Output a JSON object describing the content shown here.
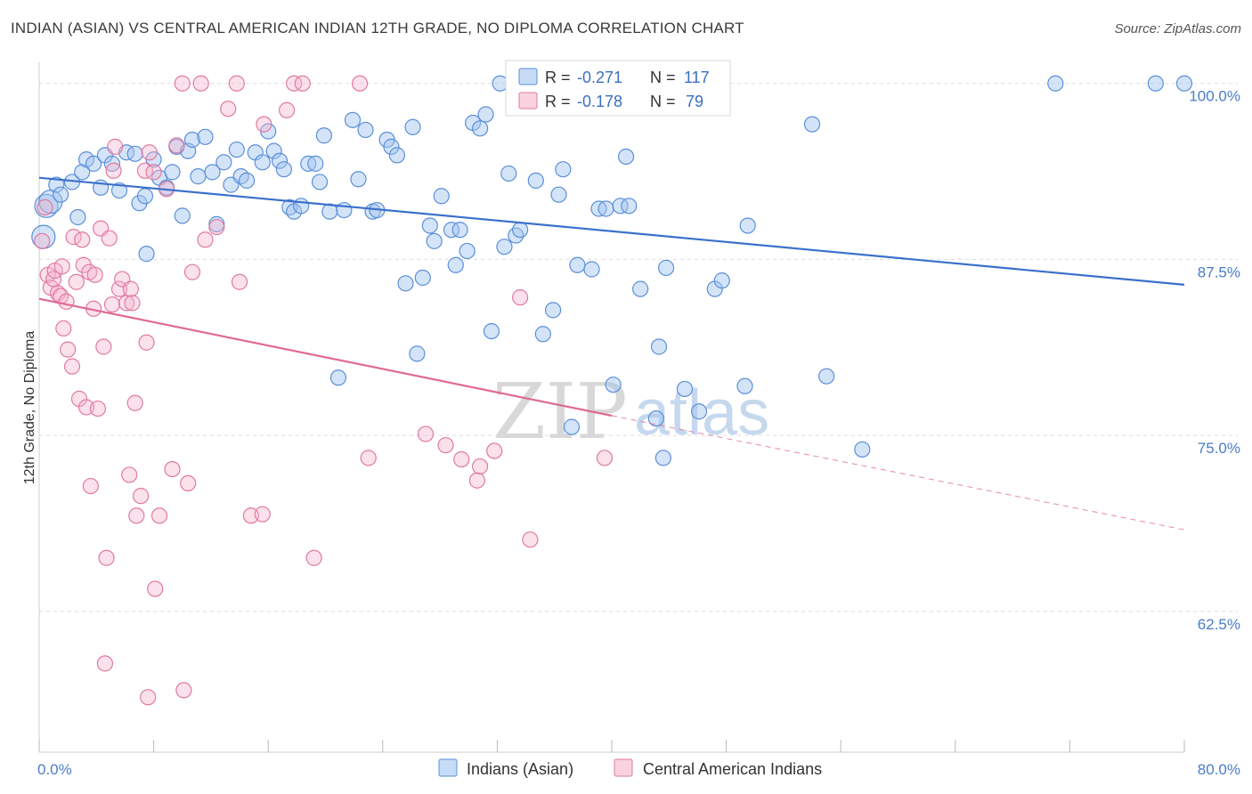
{
  "title": "INDIAN (ASIAN) VS CENTRAL AMERICAN INDIAN 12TH GRADE, NO DIPLOMA CORRELATION CHART",
  "source": "Source: ZipAtlas.com",
  "colors": {
    "blue": "#5b8fd9",
    "blue_fill": "rgba(160,196,240,0.45)",
    "pink": "#e07aa0",
    "pink_fill": "rgba(245,180,205,0.40)",
    "blue_line": "#3a70cc",
    "pink_line": "#e06a95",
    "axis_text": "#4a7cc9",
    "grid": "#dddddd"
  },
  "legend_top": {
    "rows": [
      {
        "r_label": "R =",
        "r_value": "-0.271",
        "n_label": "N =",
        "n_value": "117",
        "series": "blue"
      },
      {
        "r_label": "R =",
        "r_value": "-0.178",
        "n_label": "N =",
        "n_value": "79",
        "series": "pink"
      }
    ]
  },
  "legend_bottom": {
    "items": [
      {
        "label": "Indians (Asian)",
        "series": "blue"
      },
      {
        "label": "Central American Indians",
        "series": "pink"
      }
    ]
  },
  "watermark": {
    "zip": "ZIP",
    "atlas": "atlas"
  },
  "chart_data": {
    "type": "scatter",
    "title": "INDIAN (ASIAN) VS CENTRAL AMERICAN INDIAN 12TH GRADE, NO DIPLOMA CORRELATION CHART",
    "xlabel": "",
    "ylabel": "12th Grade, No Diploma",
    "xlim": [
      0,
      80
    ],
    "ylim": [
      52.5,
      101.5
    ],
    "x_tick_labels": [
      "0.0%",
      "80.0%"
    ],
    "y_ticks": [
      62.5,
      75.0,
      87.5,
      100.0
    ],
    "y_tick_labels": [
      "62.5%",
      "75.0%",
      "87.5%",
      "100.0%"
    ],
    "grid": true,
    "legend_position": "top-center",
    "series": [
      {
        "name": "Indians (Asian)",
        "color": "blue",
        "r": -0.271,
        "n": 117,
        "trend": {
          "x0": 0,
          "y0": 93.3,
          "x1": 80,
          "y1": 85.7
        },
        "points": [
          [
            0.3,
            89.1
          ],
          [
            0.5,
            91.3
          ],
          [
            0.8,
            91.6
          ],
          [
            1.2,
            92.8
          ],
          [
            1.5,
            92.1
          ],
          [
            2.3,
            93.0
          ],
          [
            2.7,
            90.5
          ],
          [
            3.0,
            93.7
          ],
          [
            3.3,
            94.6
          ],
          [
            3.8,
            94.3
          ],
          [
            4.3,
            92.6
          ],
          [
            4.6,
            94.9
          ],
          [
            5.1,
            94.3
          ],
          [
            5.6,
            92.4
          ],
          [
            6.1,
            95.1
          ],
          [
            6.7,
            95.0
          ],
          [
            7.0,
            91.5
          ],
          [
            7.4,
            92.0
          ],
          [
            7.5,
            87.9
          ],
          [
            8.0,
            94.6
          ],
          [
            8.4,
            93.3
          ],
          [
            8.9,
            92.6
          ],
          [
            9.3,
            93.7
          ],
          [
            9.6,
            95.5
          ],
          [
            10.0,
            90.6
          ],
          [
            10.4,
            95.2
          ],
          [
            10.7,
            96.0
          ],
          [
            11.1,
            93.4
          ],
          [
            11.6,
            96.2
          ],
          [
            12.1,
            93.7
          ],
          [
            12.4,
            90.0
          ],
          [
            12.9,
            94.4
          ],
          [
            13.4,
            92.8
          ],
          [
            13.8,
            95.3
          ],
          [
            14.1,
            93.4
          ],
          [
            14.5,
            93.1
          ],
          [
            15.1,
            95.1
          ],
          [
            15.6,
            94.4
          ],
          [
            16.0,
            96.6
          ],
          [
            16.4,
            95.2
          ],
          [
            16.8,
            94.5
          ],
          [
            17.1,
            93.9
          ],
          [
            17.5,
            91.2
          ],
          [
            17.8,
            90.9
          ],
          [
            18.3,
            91.3
          ],
          [
            18.8,
            94.3
          ],
          [
            19.3,
            94.3
          ],
          [
            19.6,
            93.0
          ],
          [
            19.9,
            96.3
          ],
          [
            20.3,
            90.9
          ],
          [
            20.9,
            79.1
          ],
          [
            21.3,
            91.0
          ],
          [
            21.9,
            97.4
          ],
          [
            22.3,
            93.2
          ],
          [
            22.8,
            96.7
          ],
          [
            23.3,
            90.9
          ],
          [
            23.6,
            91.0
          ],
          [
            24.3,
            96.0
          ],
          [
            24.6,
            95.5
          ],
          [
            25.0,
            94.9
          ],
          [
            25.6,
            85.8
          ],
          [
            26.1,
            96.9
          ],
          [
            26.4,
            80.8
          ],
          [
            26.8,
            86.2
          ],
          [
            27.3,
            89.9
          ],
          [
            27.6,
            88.8
          ],
          [
            28.1,
            92.0
          ],
          [
            28.8,
            89.6
          ],
          [
            29.1,
            87.1
          ],
          [
            29.4,
            89.6
          ],
          [
            29.9,
            88.1
          ],
          [
            30.3,
            97.2
          ],
          [
            30.8,
            96.8
          ],
          [
            31.2,
            97.8
          ],
          [
            31.6,
            82.4
          ],
          [
            32.2,
            100.0
          ],
          [
            32.5,
            88.4
          ],
          [
            32.8,
            93.6
          ],
          [
            33.3,
            89.2
          ],
          [
            33.6,
            89.6
          ],
          [
            34.7,
            93.1
          ],
          [
            35.2,
            82.2
          ],
          [
            35.9,
            83.9
          ],
          [
            36.3,
            92.1
          ],
          [
            36.6,
            93.9
          ],
          [
            37.2,
            75.6
          ],
          [
            37.6,
            87.1
          ],
          [
            38.6,
            86.8
          ],
          [
            39.1,
            91.1
          ],
          [
            39.6,
            91.1
          ],
          [
            40.1,
            78.6
          ],
          [
            40.6,
            91.3
          ],
          [
            41.2,
            91.3
          ],
          [
            41.0,
            94.8
          ],
          [
            42.0,
            85.4
          ],
          [
            43.3,
            81.3
          ],
          [
            43.1,
            76.2
          ],
          [
            43.6,
            73.4
          ],
          [
            43.8,
            86.9
          ],
          [
            45.1,
            78.3
          ],
          [
            46.1,
            76.7
          ],
          [
            47.0,
            100.0
          ],
          [
            47.2,
            85.4
          ],
          [
            47.7,
            86.0
          ],
          [
            49.3,
            78.5
          ],
          [
            49.5,
            89.9
          ],
          [
            54.0,
            97.1
          ],
          [
            55.0,
            79.2
          ],
          [
            57.5,
            74.0
          ],
          [
            71.0,
            100.0
          ],
          [
            78.0,
            100.0
          ],
          [
            80.0,
            100.0
          ]
        ]
      },
      {
        "name": "Central American Indians",
        "color": "pink",
        "r": -0.178,
        "n": 79,
        "trend": {
          "x0": 0,
          "y0": 84.7,
          "x1": 40,
          "y1": 76.4,
          "dash_x1": 80,
          "dash_y1": 68.3
        },
        "points": [
          [
            0.2,
            88.8
          ],
          [
            0.4,
            91.2
          ],
          [
            0.6,
            86.4
          ],
          [
            0.8,
            85.5
          ],
          [
            1.0,
            86.1
          ],
          [
            1.1,
            86.7
          ],
          [
            1.3,
            85.1
          ],
          [
            1.5,
            84.9
          ],
          [
            1.6,
            87.0
          ],
          [
            1.7,
            82.6
          ],
          [
            1.9,
            84.5
          ],
          [
            2.0,
            81.1
          ],
          [
            2.3,
            79.9
          ],
          [
            2.4,
            89.1
          ],
          [
            2.6,
            85.9
          ],
          [
            2.8,
            77.6
          ],
          [
            3.0,
            88.9
          ],
          [
            3.1,
            87.1
          ],
          [
            3.3,
            77.0
          ],
          [
            3.5,
            86.6
          ],
          [
            3.6,
            71.4
          ],
          [
            3.8,
            84.0
          ],
          [
            3.9,
            86.4
          ],
          [
            4.1,
            76.9
          ],
          [
            4.3,
            89.7
          ],
          [
            4.5,
            81.3
          ],
          [
            4.7,
            66.3
          ],
          [
            4.9,
            89.0
          ],
          [
            5.1,
            84.3
          ],
          [
            5.2,
            93.8
          ],
          [
            5.3,
            95.5
          ],
          [
            5.6,
            85.4
          ],
          [
            5.8,
            86.1
          ],
          [
            6.1,
            84.4
          ],
          [
            6.3,
            72.2
          ],
          [
            6.4,
            85.4
          ],
          [
            6.5,
            84.4
          ],
          [
            6.7,
            77.3
          ],
          [
            6.8,
            69.3
          ],
          [
            7.1,
            70.7
          ],
          [
            7.4,
            93.8
          ],
          [
            7.5,
            81.6
          ],
          [
            7.7,
            95.1
          ],
          [
            8.0,
            93.7
          ],
          [
            8.1,
            64.1
          ],
          [
            8.4,
            69.3
          ],
          [
            8.9,
            92.5
          ],
          [
            9.3,
            72.6
          ],
          [
            9.6,
            95.6
          ],
          [
            10.0,
            100.0
          ],
          [
            10.4,
            71.6
          ],
          [
            10.7,
            86.6
          ],
          [
            11.3,
            100.0
          ],
          [
            11.6,
            88.9
          ],
          [
            12.4,
            89.8
          ],
          [
            13.2,
            98.2
          ],
          [
            13.8,
            100.0
          ],
          [
            14.0,
            85.9
          ],
          [
            14.8,
            69.3
          ],
          [
            15.6,
            69.4
          ],
          [
            15.7,
            97.1
          ],
          [
            17.3,
            98.1
          ],
          [
            17.8,
            100.0
          ],
          [
            18.4,
            100.0
          ],
          [
            19.2,
            66.3
          ],
          [
            22.4,
            100.0
          ],
          [
            23.0,
            73.4
          ],
          [
            27.0,
            75.1
          ],
          [
            28.4,
            74.3
          ],
          [
            29.5,
            73.3
          ],
          [
            30.6,
            71.8
          ],
          [
            30.8,
            72.8
          ],
          [
            31.8,
            73.9
          ],
          [
            33.6,
            84.8
          ],
          [
            34.3,
            67.6
          ],
          [
            39.5,
            73.4
          ],
          [
            4.6,
            58.8
          ],
          [
            7.6,
            56.4
          ],
          [
            10.1,
            56.9
          ]
        ]
      }
    ]
  }
}
